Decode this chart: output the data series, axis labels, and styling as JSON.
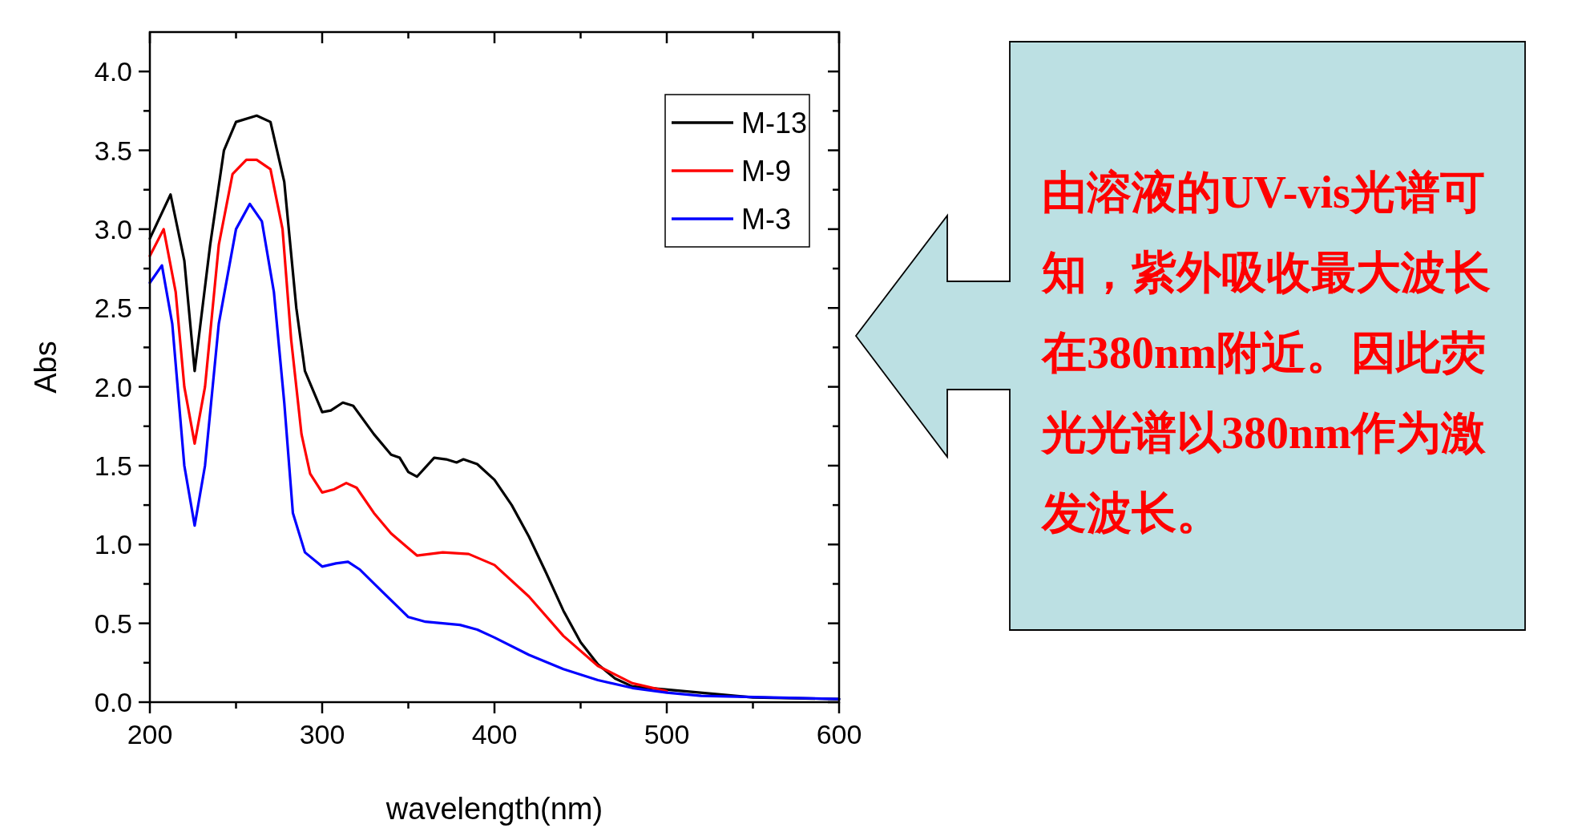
{
  "chart_data": {
    "type": "line",
    "xlabel": "wavelength(nm)",
    "ylabel": "Abs",
    "xlim": [
      200,
      600
    ],
    "ylim": [
      0,
      4.25
    ],
    "xticks": [
      200,
      {
        "value": 250,
        "label": null
      },
      300,
      {
        "value": 350,
        "label": null
      },
      400,
      {
        "value": 450,
        "label": null
      },
      500,
      {
        "value": 550,
        "label": null
      },
      600
    ],
    "yticks": [
      {
        "value": 0,
        "label": "0.0"
      },
      {
        "value": 0.25,
        "label": null
      },
      {
        "value": 0.5,
        "label": "0.5"
      },
      {
        "value": 0.75,
        "label": null
      },
      {
        "value": 1,
        "label": "1.0"
      },
      {
        "value": 1.25,
        "label": null
      },
      {
        "value": 1.5,
        "label": "1.5"
      },
      {
        "value": 1.75,
        "label": null
      },
      {
        "value": 2,
        "label": "2.0"
      },
      {
        "value": 2.25,
        "label": null
      },
      {
        "value": 2.5,
        "label": "2.5"
      },
      {
        "value": 2.75,
        "label": null
      },
      {
        "value": 3,
        "label": "3.0"
      },
      {
        "value": 3.25,
        "label": null
      },
      {
        "value": 3.5,
        "label": "3.5"
      },
      {
        "value": 3.75,
        "label": null
      },
      {
        "value": 4,
        "label": "4.0"
      }
    ],
    "grid": false,
    "legend": "top right",
    "marker": "none",
    "line_style": "solid",
    "series": [
      {
        "name": "M-13",
        "color": "#000000",
        "x": [
          200,
          212,
          220,
          226,
          235,
          243,
          250,
          262,
          270,
          278,
          285,
          290,
          300,
          305,
          312,
          318,
          330,
          340,
          345,
          350,
          355,
          365,
          372,
          378,
          382,
          390,
          400,
          410,
          420,
          430,
          440,
          450,
          460,
          470,
          480,
          550,
          600
        ],
        "values": [
          2.94,
          3.22,
          2.8,
          2.1,
          2.9,
          3.5,
          3.68,
          3.72,
          3.68,
          3.3,
          2.5,
          2.1,
          1.84,
          1.85,
          1.9,
          1.88,
          1.7,
          1.57,
          1.55,
          1.46,
          1.43,
          1.55,
          1.54,
          1.52,
          1.54,
          1.51,
          1.41,
          1.25,
          1.05,
          0.82,
          0.58,
          0.38,
          0.24,
          0.15,
          0.1,
          0.03,
          0.02
        ]
      },
      {
        "name": "M-9",
        "color": "#ff0000",
        "x": [
          200,
          208,
          215,
          220,
          226,
          232,
          240,
          248,
          256,
          262,
          270,
          277,
          282,
          288,
          293,
          300,
          307,
          314,
          320,
          330,
          340,
          355,
          370,
          385,
          400,
          420,
          440,
          460,
          480,
          500
        ],
        "values": [
          2.83,
          3.0,
          2.6,
          2.0,
          1.64,
          2.0,
          2.9,
          3.35,
          3.44,
          3.44,
          3.38,
          3.0,
          2.3,
          1.7,
          1.45,
          1.33,
          1.35,
          1.39,
          1.36,
          1.2,
          1.07,
          0.93,
          0.95,
          0.94,
          0.87,
          0.67,
          0.42,
          0.23,
          0.12,
          0.07
        ]
      },
      {
        "name": "M-3",
        "color": "#0000ff",
        "x": [
          200,
          207,
          213,
          220,
          226,
          232,
          240,
          250,
          258,
          265,
          272,
          278,
          283,
          290,
          300,
          308,
          315,
          322,
          335,
          350,
          360,
          380,
          390,
          400,
          420,
          440,
          460,
          480,
          500,
          520,
          600
        ],
        "values": [
          2.66,
          2.77,
          2.4,
          1.5,
          1.12,
          1.5,
          2.4,
          3.0,
          3.16,
          3.05,
          2.6,
          1.9,
          1.2,
          0.95,
          0.86,
          0.88,
          0.89,
          0.84,
          0.7,
          0.54,
          0.51,
          0.49,
          0.46,
          0.41,
          0.3,
          0.21,
          0.14,
          0.09,
          0.06,
          0.04,
          0.02
        ]
      }
    ],
    "annotations": [
      "由溶液的UV-vis光谱可知，紫外吸收最大波长在380nm附近。因此荧光光谱以380nm作为激发波长。"
    ]
  }
}
